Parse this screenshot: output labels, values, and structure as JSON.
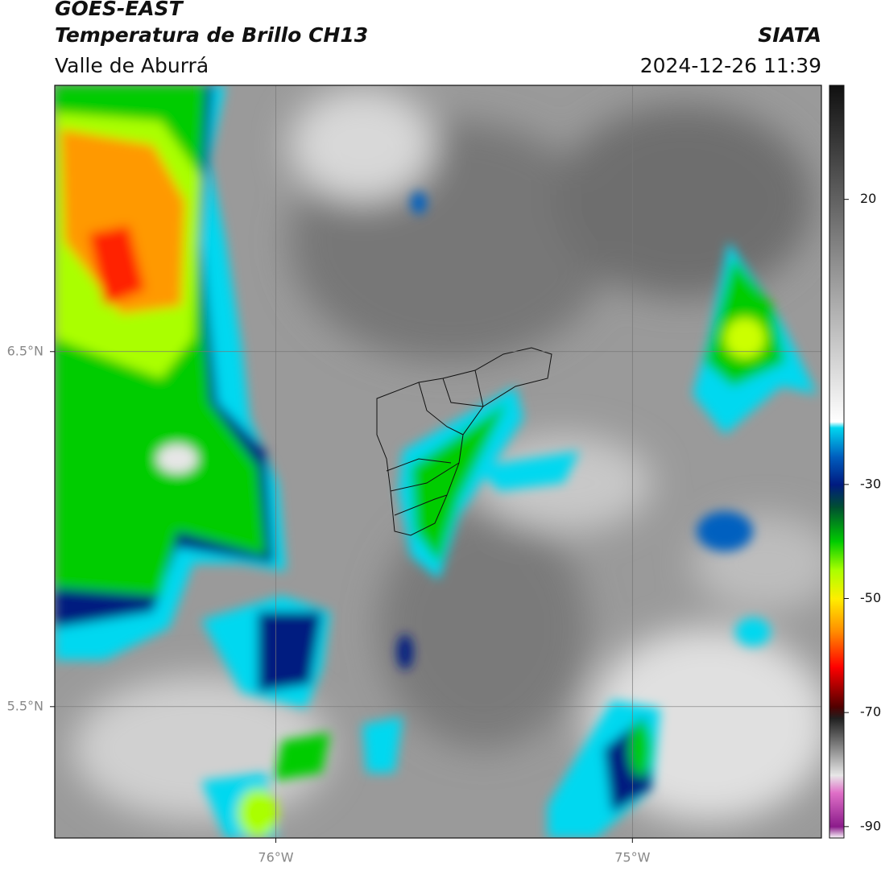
{
  "header": {
    "title": "GOES-EAST",
    "subtitle": "Temperatura de Brillo CH13",
    "region": "Valle de Aburrá",
    "source": "SIATA",
    "datetime": "2024-12-26 11:39"
  },
  "map": {
    "xlim": [
      -76.62,
      -74.47
    ],
    "ylim": [
      5.13,
      7.25
    ],
    "xticks": [
      {
        "value": -76,
        "label": "76°W"
      },
      {
        "value": -75,
        "label": "75°W"
      }
    ],
    "yticks": [
      {
        "value": 6.5,
        "label": "6.5°N"
      },
      {
        "value": 5.5,
        "label": "5.5°N"
      }
    ],
    "grid": true
  },
  "colorbar": {
    "lim": [
      -92,
      40
    ],
    "ticks": [
      20,
      -30,
      -50,
      -70,
      -90
    ],
    "stops": [
      {
        "value": -92,
        "color": "#ffffff"
      },
      {
        "value": -90,
        "color": "#8a1a8a"
      },
      {
        "value": -84,
        "color": "#e070c8"
      },
      {
        "value": -81,
        "color": "#e8e8e8"
      },
      {
        "value": -71,
        "color": "#202020"
      },
      {
        "value": -69,
        "color": "#500000"
      },
      {
        "value": -62,
        "color": "#ff0000"
      },
      {
        "value": -56,
        "color": "#ff8800"
      },
      {
        "value": -50,
        "color": "#ffee00"
      },
      {
        "value": -45,
        "color": "#aaff00"
      },
      {
        "value": -40,
        "color": "#00cc00"
      },
      {
        "value": -34,
        "color": "#005030"
      },
      {
        "value": -30,
        "color": "#001a80"
      },
      {
        "value": -25,
        "color": "#0060c0"
      },
      {
        "value": -20,
        "color": "#00d8f0"
      },
      {
        "value": -19,
        "color": "#ffffff"
      },
      {
        "value": 10,
        "color": "#8a8a8a"
      },
      {
        "value": 40,
        "color": "#101010"
      }
    ]
  }
}
